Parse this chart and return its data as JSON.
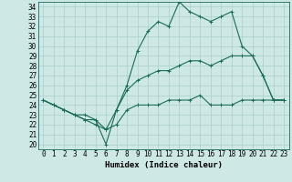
{
  "title": "",
  "xlabel": "Humidex (Indice chaleur)",
  "ylabel": "",
  "xlim": [
    -0.5,
    23.5
  ],
  "ylim": [
    19.5,
    34.5
  ],
  "xticks": [
    0,
    1,
    2,
    3,
    4,
    5,
    6,
    7,
    8,
    9,
    10,
    11,
    12,
    13,
    14,
    15,
    16,
    17,
    18,
    19,
    20,
    21,
    22,
    23
  ],
  "yticks": [
    20,
    21,
    22,
    23,
    24,
    25,
    26,
    27,
    28,
    29,
    30,
    31,
    32,
    33,
    34
  ],
  "background_color": "#cde8e5",
  "line_color": "#1a6b5a",
  "grid_color": "#aacfcc",
  "line1_x": [
    0,
    1,
    2,
    3,
    4,
    5,
    6,
    7,
    8,
    9,
    10,
    11,
    12,
    13,
    14,
    15,
    16,
    17,
    18,
    19,
    20,
    21,
    22,
    23
  ],
  "line1_y": [
    24.5,
    24.0,
    23.5,
    23.0,
    23.0,
    22.5,
    20.0,
    23.5,
    26.0,
    29.5,
    31.5,
    32.5,
    32.0,
    34.5,
    33.5,
    33.0,
    32.5,
    33.0,
    33.5,
    30.0,
    29.0,
    27.0,
    24.5,
    24.5
  ],
  "line2_x": [
    0,
    1,
    2,
    3,
    4,
    5,
    6,
    7,
    8,
    9,
    10,
    11,
    12,
    13,
    14,
    15,
    16,
    17,
    18,
    19,
    20,
    21,
    22,
    23
  ],
  "line2_y": [
    24.5,
    24.0,
    23.5,
    23.0,
    22.5,
    22.5,
    21.5,
    23.5,
    25.5,
    26.5,
    27.0,
    27.5,
    27.5,
    28.0,
    28.5,
    28.5,
    28.0,
    28.5,
    29.0,
    29.0,
    29.0,
    27.0,
    24.5,
    24.5
  ],
  "line3_x": [
    0,
    1,
    2,
    3,
    4,
    5,
    6,
    7,
    8,
    9,
    10,
    11,
    12,
    13,
    14,
    15,
    16,
    17,
    18,
    19,
    20,
    21,
    22,
    23
  ],
  "line3_y": [
    24.5,
    24.0,
    23.5,
    23.0,
    22.5,
    22.0,
    21.5,
    22.0,
    23.5,
    24.0,
    24.0,
    24.0,
    24.5,
    24.5,
    24.5,
    25.0,
    24.0,
    24.0,
    24.0,
    24.5,
    24.5,
    24.5,
    24.5,
    24.5
  ],
  "font_family": "monospace",
  "tick_fontsize": 5.5,
  "label_fontsize": 6.5
}
